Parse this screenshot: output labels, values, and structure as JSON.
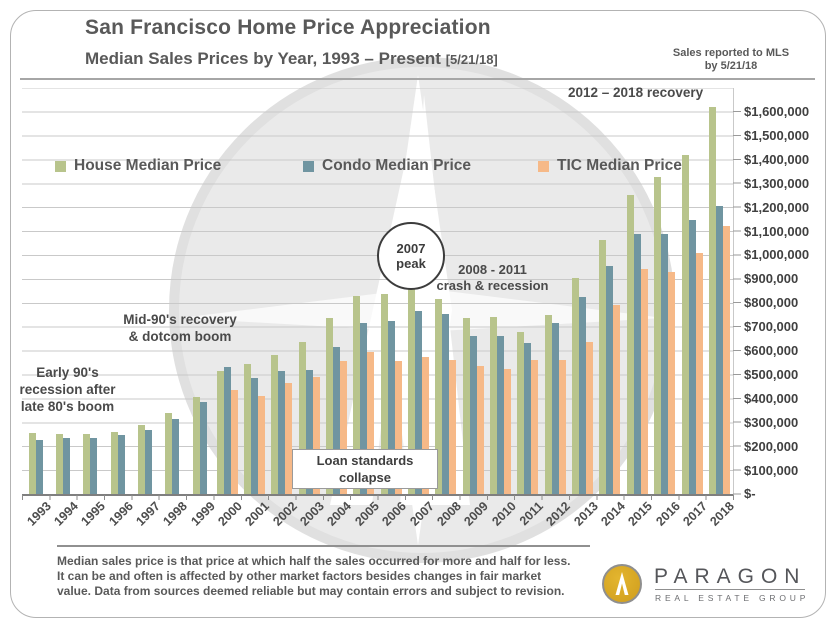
{
  "header": {
    "title": "San Francisco Home Price Appreciation",
    "subtitle": "Median Sales Prices by Year, 1993 – Present",
    "subtitle_note": "[5/21/18]",
    "mls_note_line1": "Sales reported to MLS",
    "mls_note_line2": "by 5/21/18"
  },
  "legend": [
    {
      "key": "house",
      "label": "House Median Price",
      "color": "#b8c48c"
    },
    {
      "key": "condo",
      "label": "Condo Median Price",
      "color": "#7095a1"
    },
    {
      "key": "tic",
      "label": "TIC Median Price",
      "color": "#f6b988"
    }
  ],
  "chart_data": {
    "type": "bar",
    "title": "San Francisco Home Price Appreciation — Median Sales Prices by Year, 1993 – Present",
    "categories": [
      1993,
      1994,
      1995,
      1996,
      1997,
      1998,
      1999,
      2000,
      2001,
      2002,
      2003,
      2004,
      2005,
      2006,
      2007,
      2008,
      2009,
      2010,
      2011,
      2012,
      2013,
      2014,
      2015,
      2016,
      2017,
      2018
    ],
    "series": [
      {
        "name": "House Median Price",
        "key": "house",
        "color": "#b8c48c",
        "values": [
          255000,
          250000,
          250000,
          260000,
          290000,
          340000,
          405000,
          515000,
          545000,
          580000,
          635000,
          735000,
          830000,
          835000,
          895000,
          815000,
          735000,
          740000,
          680000,
          750000,
          905000,
          1065000,
          1250000,
          1325000,
          1420000,
          1620000
        ]
      },
      {
        "name": "Condo Median Price",
        "key": "condo",
        "color": "#7095a1",
        "values": [
          225000,
          235000,
          235000,
          245000,
          270000,
          315000,
          385000,
          530000,
          485000,
          515000,
          520000,
          615000,
          715000,
          725000,
          765000,
          755000,
          660000,
          660000,
          630000,
          715000,
          825000,
          955000,
          1090000,
          1090000,
          1145000,
          1205000
        ]
      },
      {
        "name": "TIC Median Price",
        "key": "tic",
        "color": "#f6b988",
        "values": [
          null,
          null,
          null,
          null,
          null,
          null,
          null,
          435000,
          410000,
          465000,
          490000,
          555000,
          595000,
          555000,
          575000,
          560000,
          535000,
          525000,
          560000,
          560000,
          635000,
          790000,
          940000,
          930000,
          1010000,
          1120000
        ]
      }
    ],
    "ylim": [
      0,
      1600000
    ],
    "y_tick_interval": 100000,
    "y_tick_labels_top_down": [
      "$1,600,000",
      "$1,500,000",
      "$1,400,000",
      "$1,300,000",
      "$1,200,000",
      "$1,100,000",
      "$1,000,000",
      "$900,000",
      "$800,000",
      "$700,000",
      "$600,000",
      "$500,000",
      "$400,000",
      "$300,000",
      "$200,000",
      "$100,000",
      "$-"
    ],
    "grid": "horizontal",
    "legend_position": "top-inside"
  },
  "annotations": {
    "early90s": [
      "Early 90's",
      "recession after",
      "late 80's boom"
    ],
    "mid90s": [
      "Mid-90's recovery",
      "& dotcom boom"
    ],
    "peak2007": [
      "2007",
      "peak"
    ],
    "crash": [
      "2008 - 2011",
      "crash & recession"
    ],
    "recovery": "2012 – 2018 recovery",
    "loan": [
      "Loan standards",
      "collapse"
    ]
  },
  "footnote_lines": [
    "Median sales price is that price at which half the sales occurred for more and half for less.",
    "It can be and often is affected by other market factors besides changes in fair market",
    "value. Data from sources deemed reliable but may contain errors and subject to revision."
  ],
  "logo": {
    "brand": "PARAGON",
    "tagline": "REAL ESTATE GROUP"
  }
}
